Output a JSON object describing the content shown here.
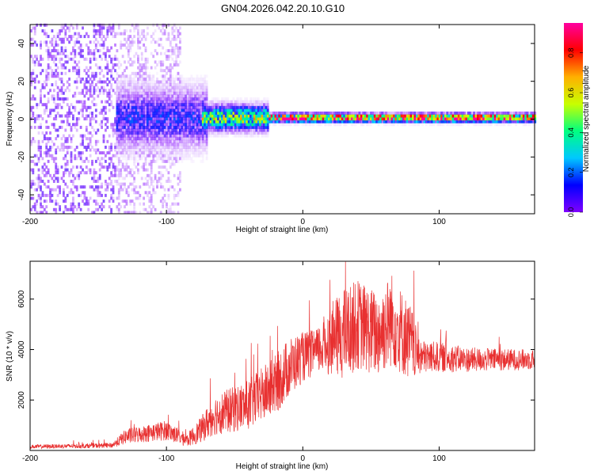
{
  "title": "GN04.2026.042.20.10.G10",
  "colors": {
    "snr_line": "#e83030",
    "colormap": [
      "#ffffff",
      "#8000ff",
      "#0000ff",
      "#00c8ff",
      "#00ff80",
      "#c8ff00",
      "#ffb000",
      "#ff0000",
      "#ff00a0"
    ]
  },
  "chart_data": [
    {
      "type": "heatmap",
      "xlabel": "Height of straight line (km)",
      "ylabel": "Frequency (Hz)",
      "xlim": [
        -200,
        170
      ],
      "ylim": [
        -50,
        50
      ],
      "xticks": [
        -200,
        -100,
        0,
        100
      ],
      "yticks": [
        -40,
        -20,
        0,
        20,
        40
      ],
      "colorbar": {
        "label": "Normalized spectral amplitude",
        "range": [
          0,
          0.95
        ],
        "ticks": [
          "0.0",
          "0.2",
          "0.4",
          "0.6",
          "0.8"
        ]
      },
      "regions": [
        {
          "x": [
            -200,
            -137
          ],
          "freq_spread": 50,
          "amplitude": 0.05
        },
        {
          "x": [
            -137,
            -90
          ],
          "freq_spread": 50,
          "amplitude": 0.03
        },
        {
          "x": [
            -137,
            -70
          ],
          "freq_spread": 15,
          "amplitude": 0.2
        },
        {
          "x": [
            -75,
            -25
          ],
          "freq_spread": 6,
          "amplitude": 0.5
        },
        {
          "x": [
            -25,
            170
          ],
          "freq_spread": 2,
          "amplitude": 0.8
        }
      ]
    },
    {
      "type": "line",
      "xlabel": "Height of straight line (km)",
      "ylabel": "SNR (10 * v/v)",
      "xlim": [
        -200,
        170
      ],
      "ylim": [
        0,
        7500
      ],
      "xticks": [
        -200,
        -100,
        0,
        100
      ],
      "yticks": [
        2000,
        4000,
        6000
      ],
      "envelope": {
        "x": [
          -200,
          -140,
          -130,
          -100,
          -85,
          -75,
          -65,
          -40,
          -20,
          -10,
          0,
          10,
          20,
          30,
          40,
          55,
          65,
          80,
          85,
          100,
          120,
          140,
          170
        ],
        "mean": [
          150,
          200,
          550,
          800,
          400,
          800,
          1400,
          1800,
          2600,
          3300,
          3700,
          3900,
          4400,
          4600,
          5000,
          4600,
          5200,
          4200,
          3700,
          3700,
          3600,
          3600,
          3600
        ],
        "spread": [
          80,
          100,
          300,
          400,
          250,
          500,
          800,
          1000,
          1200,
          1200,
          1000,
          900,
          1400,
          1800,
          1800,
          1700,
          1900,
          1500,
          700,
          600,
          500,
          450,
          400
        ]
      }
    }
  ]
}
